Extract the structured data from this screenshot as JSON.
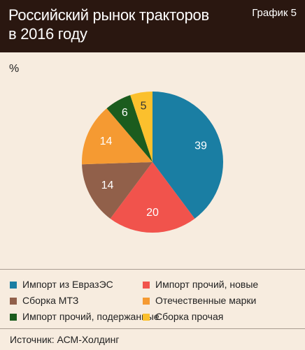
{
  "header": {
    "title_lines": [
      "Российский рынок тракторов",
      "в 2016 году"
    ],
    "label": "График 5"
  },
  "unit": "%",
  "chart_data": {
    "type": "pie",
    "title": "Российский рынок тракторов в 2016 году",
    "unit": "%",
    "start_angle_deg": 0,
    "direction": "clockwise",
    "slices": [
      {
        "name": "Импорт из ЕвразЭС",
        "value": 39,
        "color": "#1a7ea3"
      },
      {
        "name": "Импорт прочий, новые",
        "value": 20,
        "color": "#f1534c"
      },
      {
        "name": "Сборка МТЗ",
        "value": 14,
        "color": "#91604a"
      },
      {
        "name": "Отечественные марки",
        "value": 14,
        "color": "#f59a32"
      },
      {
        "name": "Импорт прочий, подержанные",
        "value": 6,
        "color": "#1b5c1e"
      },
      {
        "name": "Сборка прочая",
        "value": 5,
        "color": "#fbc02d"
      }
    ],
    "legend_position": "bottom"
  },
  "source": "Источник: АСМ-Холдинг"
}
